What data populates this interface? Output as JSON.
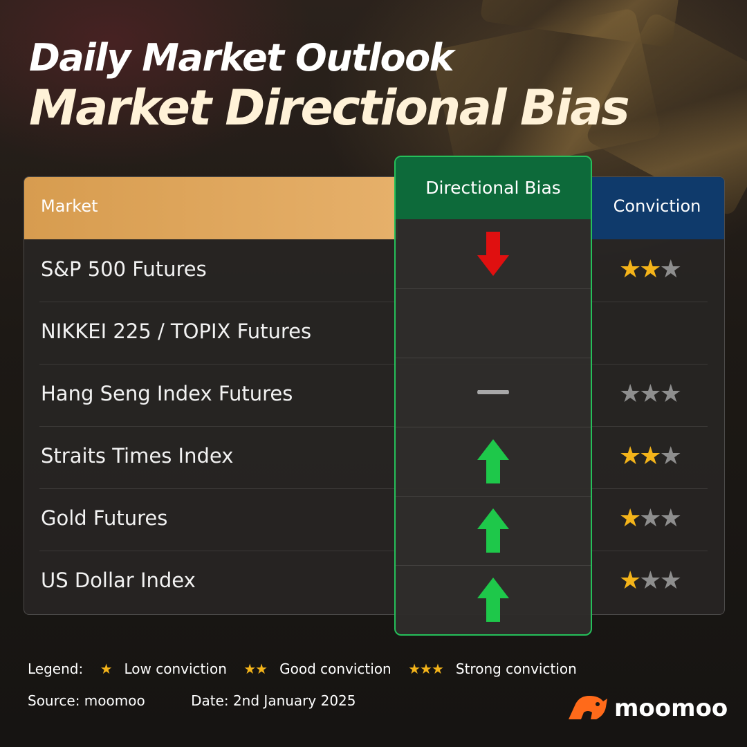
{
  "titles": {
    "line1": "Daily Market Outlook",
    "line2": "Market Directional Bias"
  },
  "table": {
    "headers": {
      "market": "Market",
      "bias": "Directional Bias",
      "conviction": "Conviction"
    },
    "rows": [
      {
        "market": "S&P 500 Futures",
        "bias": "down",
        "conviction": 2
      },
      {
        "market": "NIKKEI 225 / TOPIX Futures",
        "bias": "none",
        "conviction": 0
      },
      {
        "market": "Hang Seng Index Futures",
        "bias": "neutral",
        "conviction": 0
      },
      {
        "market": "Straits Times Index",
        "bias": "up",
        "conviction": 2
      },
      {
        "market": "Gold Futures",
        "bias": "up",
        "conviction": 1
      },
      {
        "market": "US Dollar Index",
        "bias": "up",
        "conviction": 1
      }
    ]
  },
  "legend": {
    "label": "Legend:",
    "low_stars": "★",
    "low": "Low conviction",
    "good_stars": "★★",
    "good": "Good conviction",
    "strong_stars": "★★★",
    "strong": "Strong conviction"
  },
  "source": "Source: moomoo",
  "date": "Date: 2nd January 2025",
  "brand": "moomoo",
  "colors": {
    "market_header": "#dca45a",
    "bias_header": "#0d6a3a",
    "conviction_header": "#0f3a6b",
    "arrow_up": "#1ec84a",
    "arrow_down": "#e01010",
    "star_on": "#f4b41a",
    "star_off": "#8e8e8e",
    "logo_orange": "#ff6a1a"
  },
  "icons": {
    "up": "arrow-up-icon",
    "down": "arrow-down-icon",
    "neutral": "dash-icon",
    "star": "star-icon",
    "logo": "bull-logo-icon"
  }
}
